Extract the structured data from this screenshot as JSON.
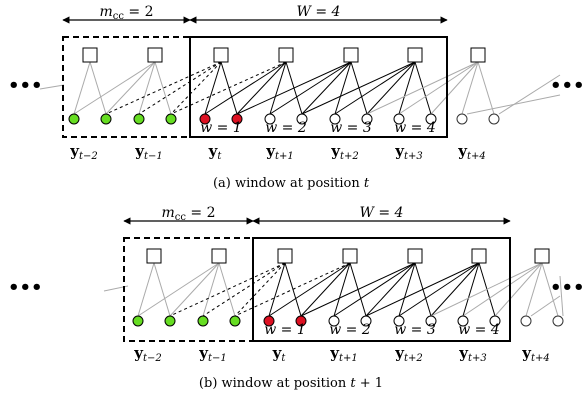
{
  "panels": [
    {
      "mcc_label": "m",
      "mcc_sub": "cc",
      "mcc_value": "= 2",
      "W_label": "W = 4",
      "caption_prefix": "(a) window at position ",
      "caption_var": "t",
      "caption_suffix": "",
      "y_labels": [
        {
          "base": "y",
          "sub": "t−2"
        },
        {
          "base": "y",
          "sub": "t−1"
        },
        {
          "base": "y",
          "sub": "t"
        },
        {
          "base": "y",
          "sub": "t+1"
        },
        {
          "base": "y",
          "sub": "t+2"
        },
        {
          "base": "y",
          "sub": "t+3"
        },
        {
          "base": "y",
          "sub": "t+4"
        }
      ],
      "w_labels": [
        "w = 1",
        "w = 2",
        "w = 3",
        "w = 4"
      ],
      "colors": {
        "green": "#66dd22",
        "red": "#dd1122"
      }
    },
    {
      "mcc_label": "m",
      "mcc_sub": "cc",
      "mcc_value": "= 2",
      "W_label": "W = 4",
      "caption_prefix": "(b) window at position ",
      "caption_var": "t",
      "caption_suffix": " + 1",
      "y_labels": [
        {
          "base": "y",
          "sub": "t−2"
        },
        {
          "base": "y",
          "sub": "t−1"
        },
        {
          "base": "y",
          "sub": "t"
        },
        {
          "base": "y",
          "sub": "t+1"
        },
        {
          "base": "y",
          "sub": "t+2"
        },
        {
          "base": "y",
          "sub": "t+3"
        },
        {
          "base": "y",
          "sub": "t+4"
        }
      ],
      "w_labels": [
        "w = 1",
        "w = 2",
        "w = 3",
        "w = 4"
      ],
      "colors": {
        "green": "#66dd22",
        "red": "#dd1122"
      }
    }
  ],
  "ellipsis": "•••"
}
